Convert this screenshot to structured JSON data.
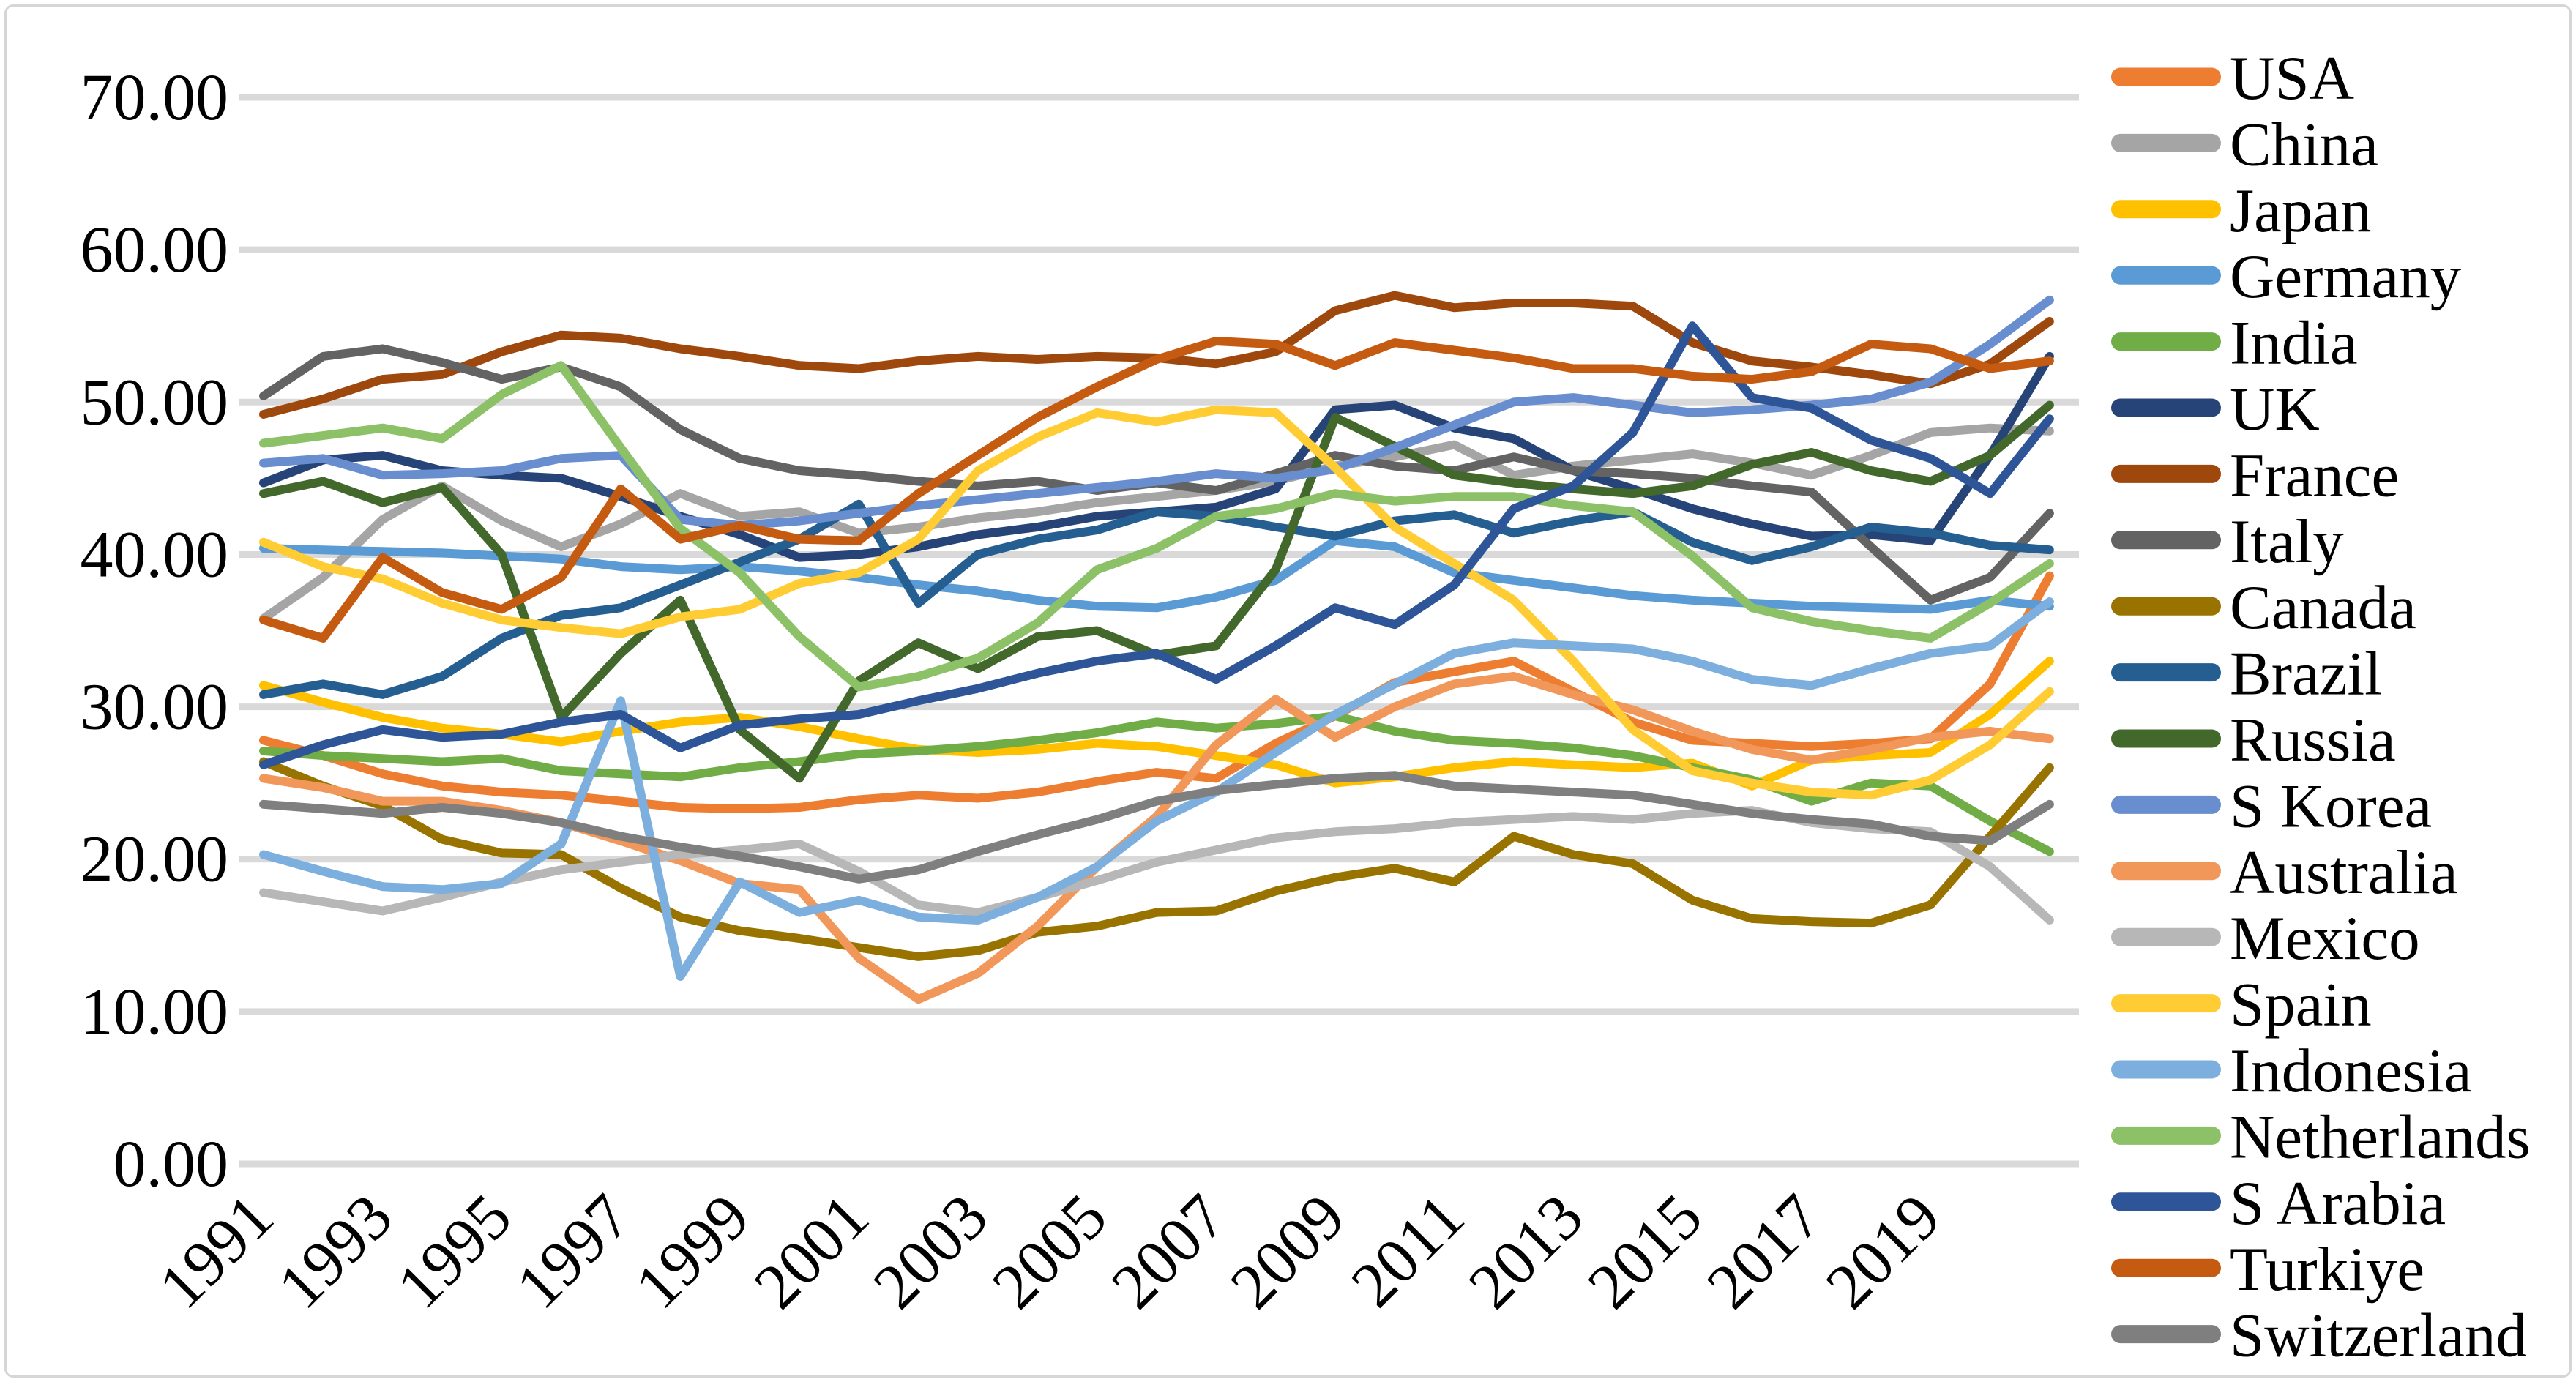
{
  "figure": {
    "background": "#ffffff",
    "border_color": "#d6d6d6"
  },
  "chart_data": {
    "type": "line",
    "title": "",
    "xlabel": "",
    "ylabel": "",
    "ylim": [
      0,
      70
    ],
    "y_tick_values": [
      0,
      10,
      20,
      30,
      40,
      50,
      60,
      70
    ],
    "y_tick_labels": [
      "0.00",
      "10.00",
      "20.00",
      "30.00",
      "40.00",
      "50.00",
      "60.00",
      "70.00"
    ],
    "x": [
      1991,
      1992,
      1993,
      1994,
      1995,
      1996,
      1997,
      1998,
      1999,
      2000,
      2001,
      2002,
      2003,
      2004,
      2005,
      2006,
      2007,
      2008,
      2009,
      2010,
      2011,
      2012,
      2013,
      2014,
      2015,
      2016,
      2017,
      2018,
      2019,
      2020,
      2021
    ],
    "x_tick_labels": [
      "1991",
      "1993",
      "1995",
      "1997",
      "1999",
      "2001",
      "2003",
      "2005",
      "2007",
      "2009",
      "2011",
      "2013",
      "2015",
      "2017",
      "2019"
    ],
    "grid": "horizontal",
    "legend_position": "right",
    "series": [
      {
        "name": "USA",
        "color": "#ED7D31",
        "values": [
          27.8,
          26.8,
          25.6,
          24.8,
          24.4,
          24.2,
          23.8,
          23.4,
          23.3,
          23.4,
          23.9,
          24.2,
          24.0,
          24.4,
          25.1,
          25.7,
          25.3,
          27.6,
          29.4,
          31.6,
          32.3,
          33.0,
          31.0,
          29.0,
          27.8,
          27.6,
          27.4,
          27.6,
          27.9,
          31.5,
          38.6
        ]
      },
      {
        "name": "China",
        "color": "#A5A5A5",
        "values": [
          35.8,
          38.5,
          42.3,
          44.5,
          42.2,
          40.5,
          42.0,
          44.0,
          42.5,
          42.8,
          41.4,
          41.8,
          42.4,
          42.8,
          43.4,
          43.8,
          44.2,
          44.8,
          45.8,
          46.4,
          47.2,
          45.2,
          45.8,
          46.2,
          46.6,
          46.0,
          45.2,
          46.5,
          48.0,
          48.3,
          48.1
        ]
      },
      {
        "name": "Japan",
        "color": "#FFC000",
        "values": [
          31.4,
          30.3,
          29.3,
          28.6,
          28.2,
          27.7,
          28.4,
          29.0,
          29.3,
          28.7,
          27.9,
          27.2,
          27.0,
          27.2,
          27.6,
          27.4,
          26.8,
          26.2,
          25.0,
          25.4,
          26.0,
          26.4,
          26.2,
          26.0,
          26.3,
          24.8,
          26.5,
          26.8,
          27.0,
          29.5,
          33.0
        ]
      },
      {
        "name": "Germany",
        "color": "#5B9BD5",
        "values": [
          40.4,
          40.3,
          40.2,
          40.1,
          39.9,
          39.7,
          39.2,
          39.0,
          39.2,
          38.9,
          38.5,
          38.0,
          37.6,
          37.0,
          36.6,
          36.5,
          37.2,
          38.3,
          40.9,
          40.5,
          38.8,
          38.3,
          37.8,
          37.3,
          37.0,
          36.8,
          36.6,
          36.5,
          36.4,
          37.0,
          36.6
        ]
      },
      {
        "name": "India",
        "color": "#70AD47",
        "values": [
          27.1,
          26.8,
          26.6,
          26.4,
          26.6,
          25.8,
          25.6,
          25.4,
          26.0,
          26.4,
          26.9,
          27.1,
          27.4,
          27.8,
          28.3,
          29.0,
          28.6,
          28.9,
          29.4,
          28.4,
          27.8,
          27.6,
          27.3,
          26.8,
          26.0,
          25.2,
          23.8,
          25.0,
          24.8,
          22.5,
          20.5
        ]
      },
      {
        "name": "UK",
        "color": "#264478",
        "values": [
          44.7,
          46.2,
          46.5,
          45.5,
          45.2,
          45.0,
          43.8,
          42.5,
          41.3,
          39.8,
          40.0,
          40.5,
          41.3,
          41.8,
          42.5,
          42.8,
          43.1,
          44.3,
          49.5,
          49.8,
          48.3,
          47.6,
          45.5,
          44.3,
          43.0,
          42.0,
          41.2,
          41.3,
          40.9,
          46.5,
          53.0
        ]
      },
      {
        "name": "France",
        "color": "#9E480E",
        "values": [
          49.2,
          50.2,
          51.5,
          51.8,
          53.3,
          54.4,
          54.2,
          53.5,
          53.0,
          52.4,
          52.2,
          52.7,
          53.0,
          52.8,
          53.0,
          52.9,
          52.5,
          53.3,
          56.0,
          57.0,
          56.2,
          56.5,
          56.5,
          56.3,
          53.9,
          52.7,
          52.3,
          51.8,
          51.2,
          52.5,
          55.3
        ]
      },
      {
        "name": "Italy",
        "color": "#636363",
        "values": [
          50.4,
          53.0,
          53.5,
          52.6,
          51.5,
          52.3,
          51.0,
          48.2,
          46.3,
          45.5,
          45.2,
          44.8,
          44.5,
          44.8,
          44.2,
          44.7,
          44.2,
          45.3,
          46.5,
          45.8,
          45.5,
          46.4,
          45.5,
          45.3,
          45.0,
          44.5,
          44.1,
          40.5,
          37.0,
          38.5,
          42.7
        ]
      },
      {
        "name": "Canada",
        "color": "#997300",
        "values": [
          26.4,
          24.8,
          23.5,
          21.3,
          20.4,
          20.3,
          18.1,
          16.2,
          15.3,
          14.8,
          14.2,
          13.6,
          14.0,
          15.2,
          15.6,
          16.5,
          16.6,
          17.9,
          18.8,
          19.4,
          18.5,
          21.5,
          20.3,
          19.7,
          17.3,
          16.1,
          15.9,
          15.8,
          17.0,
          21.5,
          26.0
        ]
      },
      {
        "name": "Brazil",
        "color": "#255E91",
        "values": [
          30.8,
          31.5,
          30.8,
          32.0,
          34.5,
          36.0,
          36.5,
          38.0,
          39.5,
          41.0,
          43.3,
          36.8,
          40.0,
          41.0,
          41.6,
          42.8,
          42.5,
          41.8,
          41.2,
          42.2,
          42.6,
          41.4,
          42.2,
          42.8,
          40.8,
          39.6,
          40.5,
          41.8,
          41.4,
          40.6,
          40.3
        ]
      },
      {
        "name": "Russia",
        "color": "#43682B",
        "values": [
          44.0,
          44.8,
          43.4,
          44.4,
          40.0,
          29.3,
          33.5,
          37.0,
          28.5,
          25.3,
          31.7,
          34.2,
          32.5,
          34.6,
          35.0,
          33.4,
          34.0,
          39.0,
          49.0,
          47.1,
          45.2,
          44.7,
          44.3,
          44.0,
          44.5,
          45.9,
          46.7,
          45.5,
          44.8,
          46.5,
          49.8
        ]
      },
      {
        "name": "S Korea",
        "color": "#698ED0",
        "values": [
          46.0,
          46.3,
          45.2,
          45.3,
          45.5,
          46.3,
          46.5,
          42.3,
          41.9,
          42.2,
          42.7,
          43.2,
          43.6,
          44.0,
          44.4,
          44.8,
          45.3,
          45.0,
          45.6,
          47.0,
          48.5,
          50.0,
          50.3,
          49.8,
          49.3,
          49.5,
          49.8,
          50.2,
          51.3,
          53.8,
          56.7
        ]
      },
      {
        "name": "Australia",
        "color": "#F1975A",
        "values": [
          25.3,
          24.7,
          23.8,
          23.8,
          23.2,
          22.4,
          21.2,
          19.9,
          18.4,
          18.0,
          13.5,
          10.8,
          12.5,
          15.6,
          19.5,
          22.8,
          27.5,
          30.5,
          28.0,
          30.0,
          31.5,
          32.0,
          30.8,
          29.8,
          28.4,
          27.2,
          26.5,
          27.2,
          28.0,
          28.4,
          27.9
        ]
      },
      {
        "name": "Mexico",
        "color": "#B7B7B7",
        "values": [
          17.8,
          17.2,
          16.6,
          17.5,
          18.5,
          19.3,
          19.8,
          20.3,
          20.6,
          21.0,
          19.2,
          17.0,
          16.5,
          17.5,
          18.6,
          19.8,
          20.6,
          21.4,
          21.8,
          22.0,
          22.4,
          22.6,
          22.8,
          22.6,
          23.0,
          23.2,
          22.4,
          22.0,
          21.8,
          19.5,
          16.0
        ]
      },
      {
        "name": "Spain",
        "color": "#FFCD33",
        "values": [
          40.8,
          39.2,
          38.4,
          36.8,
          35.7,
          35.2,
          34.8,
          35.9,
          36.4,
          38.1,
          38.8,
          41.0,
          45.5,
          47.7,
          49.3,
          48.7,
          49.5,
          49.3,
          45.7,
          41.8,
          39.4,
          37.0,
          33.0,
          28.5,
          25.8,
          25.0,
          24.4,
          24.2,
          25.2,
          27.5,
          31.0
        ]
      },
      {
        "name": "Indonesia",
        "color": "#7CAFDD",
        "values": [
          20.3,
          19.2,
          18.2,
          18.0,
          18.4,
          21.0,
          30.4,
          12.3,
          18.5,
          16.5,
          17.3,
          16.2,
          16.0,
          17.5,
          19.5,
          22.5,
          24.4,
          27.0,
          29.5,
          31.5,
          33.5,
          34.2,
          34.0,
          33.8,
          33.0,
          31.8,
          31.4,
          32.5,
          33.5,
          34.0,
          36.9
        ]
      },
      {
        "name": "Netherlands",
        "color": "#8CC168",
        "values": [
          47.3,
          47.8,
          48.3,
          47.6,
          50.5,
          52.4,
          47.0,
          41.7,
          38.8,
          34.6,
          31.3,
          32.0,
          33.2,
          35.5,
          39.0,
          40.4,
          42.5,
          43.0,
          44.0,
          43.5,
          43.8,
          43.8,
          43.2,
          42.8,
          39.9,
          36.5,
          35.6,
          35.0,
          34.5,
          36.8,
          39.4
        ]
      },
      {
        "name": "S Arabia",
        "color": "#2E5597",
        "values": [
          26.2,
          27.5,
          28.5,
          28.0,
          28.2,
          29.0,
          29.5,
          27.3,
          28.8,
          29.2,
          29.5,
          30.4,
          31.2,
          32.2,
          33.0,
          33.5,
          31.8,
          34.0,
          36.5,
          35.4,
          38.0,
          43.0,
          44.5,
          48.0,
          55.0,
          50.3,
          49.6,
          47.5,
          46.3,
          44.0,
          48.9
        ]
      },
      {
        "name": "Turkiye",
        "color": "#C55A11",
        "values": [
          35.7,
          34.5,
          39.8,
          37.5,
          36.4,
          38.5,
          44.3,
          41.0,
          41.9,
          41.0,
          40.9,
          44.0,
          46.5,
          49.0,
          51.0,
          52.8,
          54.0,
          53.8,
          52.4,
          53.9,
          53.4,
          52.9,
          52.2,
          52.2,
          51.7,
          51.5,
          52.0,
          53.8,
          53.5,
          52.2,
          52.7
        ]
      },
      {
        "name": "Switzerland",
        "color": "#7F7F7F",
        "values": [
          23.6,
          23.3,
          23.0,
          23.4,
          23.0,
          22.4,
          21.5,
          20.8,
          20.2,
          19.5,
          18.7,
          19.3,
          20.5,
          21.6,
          22.6,
          23.8,
          24.5,
          24.9,
          25.3,
          25.5,
          24.8,
          24.6,
          24.4,
          24.2,
          23.6,
          23.0,
          22.6,
          22.3,
          21.5,
          21.2,
          23.6
        ]
      }
    ]
  }
}
